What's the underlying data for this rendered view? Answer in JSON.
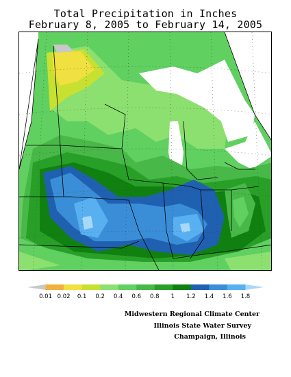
{
  "title": {
    "line1": "Total Precipitation in Inches",
    "line2": "February 8, 2005 to February 14, 2005"
  },
  "legend": {
    "labels": [
      "0.01",
      "0.02",
      "0.1",
      "0.2",
      "0.4",
      "0.6",
      "0.8",
      "1",
      "1.2",
      "1.4",
      "1.6",
      "1.8"
    ],
    "colors": [
      "#c8c8c8",
      "#f0b040",
      "#f0e040",
      "#c8e030",
      "#8ce070",
      "#60d060",
      "#48b848",
      "#28a028",
      "#108010",
      "#2060b0",
      "#3a8ed8",
      "#58b0f0",
      "#a8d8f8"
    ]
  },
  "colors": {
    "water": "#ffffff",
    "grid": "#000000",
    "border": "#000000"
  },
  "credits": {
    "line1": "Midwestern Regional Climate Center",
    "line2": "Illinois State Water Survey",
    "line3": "Champaign, Illinois"
  }
}
